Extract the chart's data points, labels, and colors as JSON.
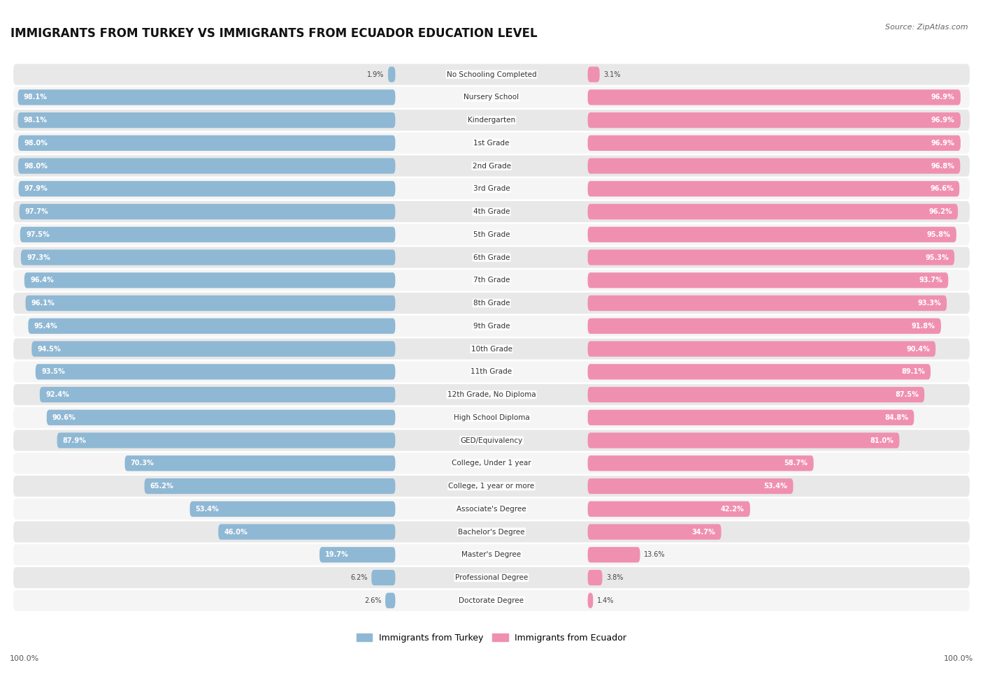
{
  "title": "IMMIGRANTS FROM TURKEY VS IMMIGRANTS FROM ECUADOR EDUCATION LEVEL",
  "source": "Source: ZipAtlas.com",
  "categories": [
    "No Schooling Completed",
    "Nursery School",
    "Kindergarten",
    "1st Grade",
    "2nd Grade",
    "3rd Grade",
    "4th Grade",
    "5th Grade",
    "6th Grade",
    "7th Grade",
    "8th Grade",
    "9th Grade",
    "10th Grade",
    "11th Grade",
    "12th Grade, No Diploma",
    "High School Diploma",
    "GED/Equivalency",
    "College, Under 1 year",
    "College, 1 year or more",
    "Associate's Degree",
    "Bachelor's Degree",
    "Master's Degree",
    "Professional Degree",
    "Doctorate Degree"
  ],
  "turkey_values": [
    1.9,
    98.1,
    98.1,
    98.0,
    98.0,
    97.9,
    97.7,
    97.5,
    97.3,
    96.4,
    96.1,
    95.4,
    94.5,
    93.5,
    92.4,
    90.6,
    87.9,
    70.3,
    65.2,
    53.4,
    46.0,
    19.7,
    6.2,
    2.6
  ],
  "ecuador_values": [
    3.1,
    96.9,
    96.9,
    96.9,
    96.8,
    96.6,
    96.2,
    95.8,
    95.3,
    93.7,
    93.3,
    91.8,
    90.4,
    89.1,
    87.5,
    84.8,
    81.0,
    58.7,
    53.4,
    42.2,
    34.7,
    13.6,
    3.8,
    1.4
  ],
  "turkey_color": "#8FB8D4",
  "ecuador_color": "#F090B0",
  "bg_color": "#ffffff",
  "row_bg_light": "#f5f5f5",
  "row_bg_dark": "#e8e8e8",
  "legend_turkey": "Immigrants from Turkey",
  "legend_ecuador": "Immigrants from Ecuador"
}
